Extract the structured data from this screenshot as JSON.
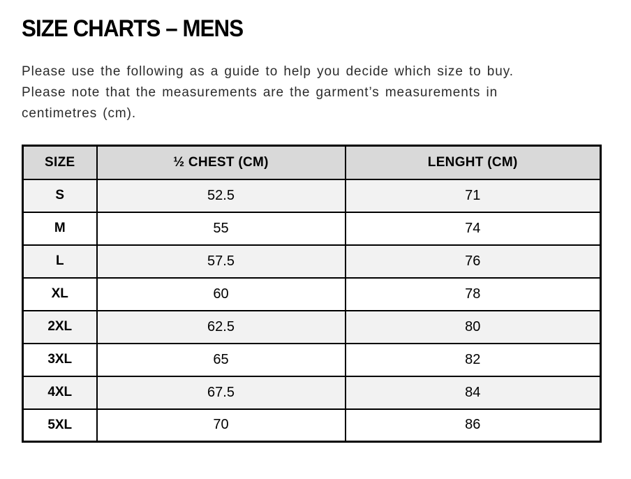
{
  "page": {
    "title": "SIZE CHARTS – MENS",
    "intro_lines": [
      "Please use the following as a guide to help you decide which size to buy.",
      "Please note that the measurements are the garment’s measurements in",
      "centimetres (cm)."
    ]
  },
  "chart_data": {
    "type": "table",
    "columns": [
      "SIZE",
      "½ CHEST (CM)",
      "LENGHT (CM)"
    ],
    "rows": [
      [
        "S",
        "52.5",
        "71"
      ],
      [
        "M",
        "55",
        "74"
      ],
      [
        "L",
        "57.5",
        "76"
      ],
      [
        "XL",
        "60",
        "78"
      ],
      [
        "2XL",
        "62.5",
        "80"
      ],
      [
        "3XL",
        "65",
        "82"
      ],
      [
        "4XL",
        "67.5",
        "84"
      ],
      [
        "5XL",
        "70",
        "86"
      ]
    ]
  },
  "colors": {
    "header_bg": "#d9d9d9",
    "stripe_bg": "#f2f2f2",
    "border_color": "#000000",
    "text_color": "#222222"
  }
}
